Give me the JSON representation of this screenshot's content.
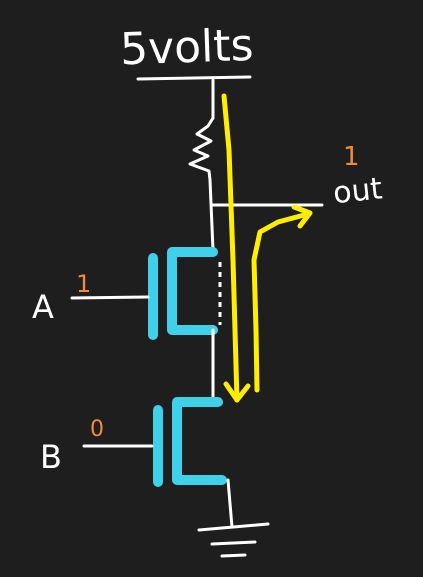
{
  "diagram": {
    "supply_label": "5volts",
    "output_label": "out",
    "output_state": "1",
    "input_a_label": "A",
    "input_a_state": "1",
    "input_b_label": "B",
    "input_b_state": "0"
  },
  "colors": {
    "background": "#1e1e1e",
    "wire": "#ffffff",
    "transistor": "#3fd0ea",
    "current_arrow": "#ffee00",
    "logic_state": "#f08a3c"
  },
  "icons": {
    "resistor": "resistor-zigzag",
    "ground": "ground-symbol",
    "transistor": "mosfet-symbol"
  }
}
